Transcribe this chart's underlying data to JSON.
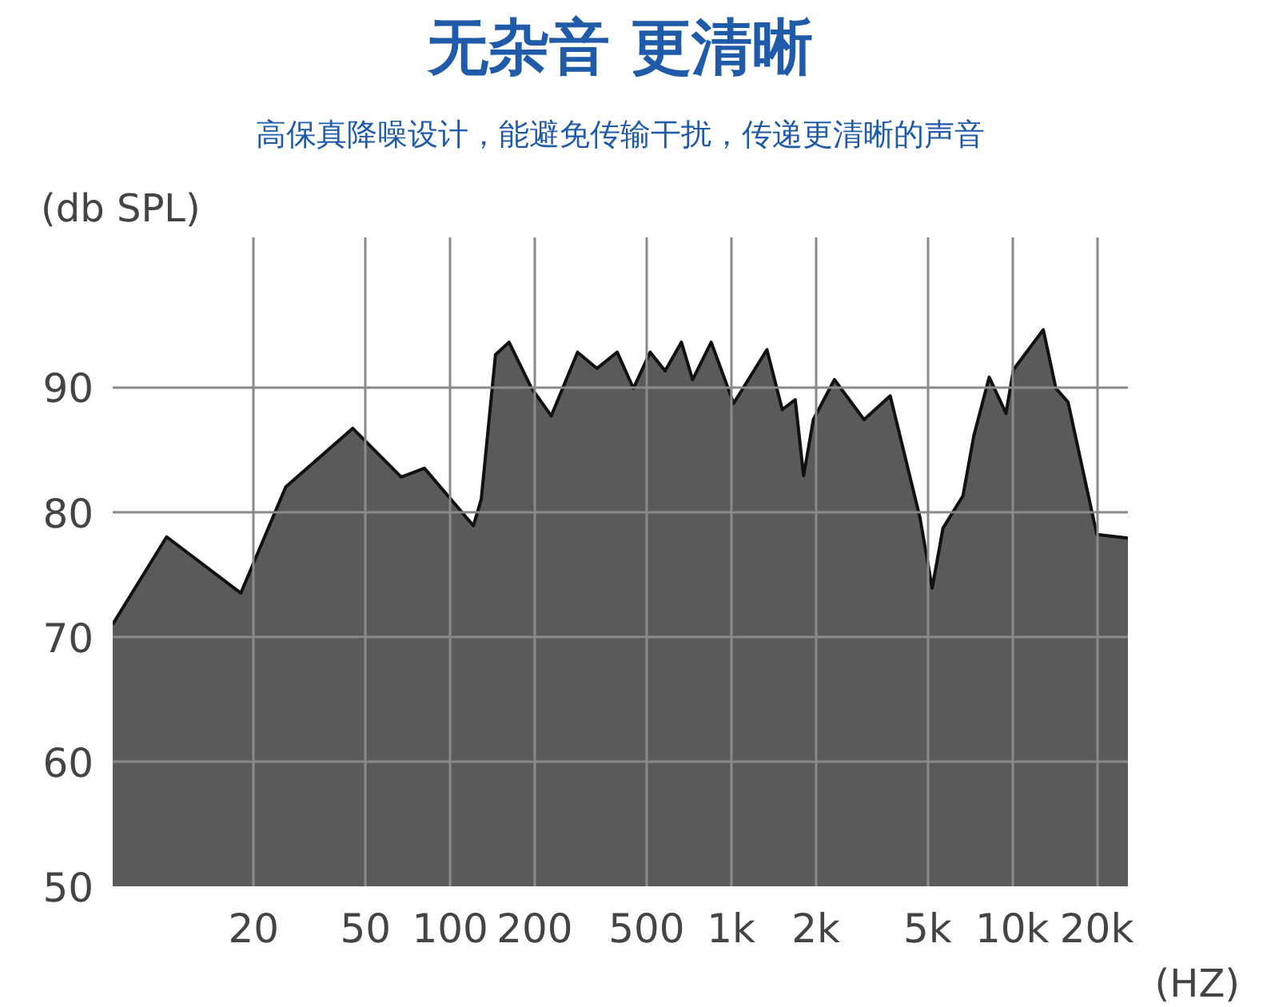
{
  "chart_data": {
    "type": "area",
    "title": "无杂音 更清晰",
    "subtitle": "高保真降噪设计，能避免传输干扰，传递更清晰的声音",
    "ylabel": "(db SPL)",
    "xlabel": "(HZ)",
    "log": "x",
    "xlim": [
      6.3,
      25800
    ],
    "ylim": [
      50,
      102
    ],
    "xticks": [
      20,
      50,
      100,
      200,
      500,
      {
        "value": 1000,
        "label": "1k"
      },
      {
        "value": 2000,
        "label": "2k"
      },
      {
        "value": 5000,
        "label": "5k"
      },
      {
        "value": 10000,
        "label": "10k"
      },
      {
        "value": 20000,
        "label": "20k"
      }
    ],
    "yticks": [
      50,
      60,
      70,
      80,
      90
    ],
    "grid": true,
    "x": [
      6.3,
      9.8,
      18,
      26,
      45,
      67,
      81,
      121,
      129,
      145,
      162,
      195,
      229,
      284,
      333,
      393,
      449,
      515,
      582,
      665,
      729,
      849,
      1020,
      1340,
      1520,
      1690,
      1810,
      1960,
      2330,
      2970,
      3680,
      4700,
      5190,
      5670,
      6680,
      7300,
      8280,
      9500,
      10100,
      12900,
      14300,
      15800,
      20000,
      25800
    ],
    "series": [
      {
        "color": "#5a5a5a",
        "values": [
          71,
          78,
          73.5,
          82,
          86.7,
          82.8,
          83.5,
          78.9,
          81,
          92.6,
          93.6,
          89.9,
          87.7,
          92.8,
          91.5,
          92.8,
          89.9,
          92.8,
          91.3,
          93.6,
          90.6,
          93.6,
          88.7,
          93,
          88.2,
          89,
          82.9,
          87.4,
          90.6,
          87.4,
          89.3,
          79.5,
          73.9,
          78.7,
          81.3,
          86.1,
          90.8,
          87.9,
          91.4,
          94.6,
          89.9,
          88.8,
          78.2,
          77.9
        ]
      }
    ]
  }
}
